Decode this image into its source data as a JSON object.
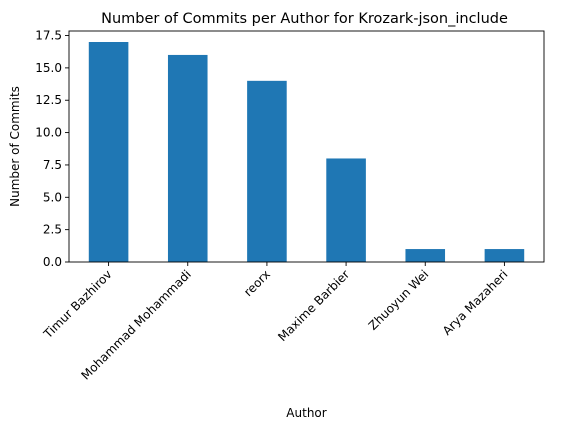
{
  "chart_data": {
    "type": "bar",
    "title": "Number of Commits per Author for Krozark-json_include",
    "xlabel": "Author",
    "ylabel": "Number of Commits",
    "categories": [
      "Timur Bazhirov",
      "Mohammad Mohammadi",
      "reorx",
      "Maxime Barbier",
      "Zhuoyun Wei",
      "Arya Mazaheri"
    ],
    "values": [
      17,
      16,
      14,
      8,
      1,
      1
    ],
    "ylim": [
      0,
      17.85
    ],
    "yticks": [
      "0.0",
      "2.5",
      "5.0",
      "7.5",
      "10.0",
      "12.5",
      "15.0",
      "17.5"
    ],
    "ytick_values": [
      0,
      2.5,
      5,
      7.5,
      10,
      12.5,
      15,
      17.5
    ],
    "bar_color": "#1f77b4",
    "grid": false,
    "legend": "none"
  }
}
